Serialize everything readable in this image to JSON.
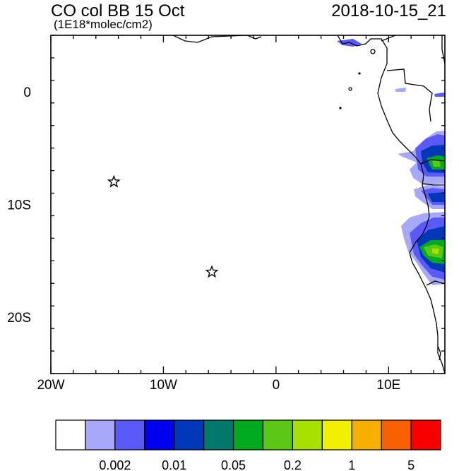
{
  "title": "CO col BB 15 Oct",
  "units": "(1E18*molec/cm2)",
  "timestamp": "2018-10-15_21",
  "lon_ticks": [
    {
      "label": "20W",
      "lon": -20
    },
    {
      "label": "10W",
      "lon": -10
    },
    {
      "label": "0",
      "lon": 0
    },
    {
      "label": "10E",
      "lon": 10
    }
  ],
  "lat_ticks": [
    {
      "label": "0",
      "lat": 0
    },
    {
      "label": "10S",
      "lat": -10
    },
    {
      "label": "20S",
      "lat": -20
    }
  ],
  "extent": {
    "lon_min": -20,
    "lon_max": 15,
    "lat_min": -25,
    "lat_max": 5
  },
  "markers": [
    {
      "name": "star-marker",
      "lon": -14.4,
      "lat": -8.0
    },
    {
      "name": "star-marker",
      "lon": -5.7,
      "lat": -16.0
    }
  ],
  "colorbar": {
    "colors": [
      "#ffffff",
      "#a8a8f8",
      "#5a5af8",
      "#0000f0",
      "#0038b8",
      "#00786a",
      "#00aa1e",
      "#5ac814",
      "#a8e000",
      "#f0f000",
      "#f8b000",
      "#f86000",
      "#f80000"
    ],
    "labels": [
      "0.002",
      "0.01",
      "0.05",
      "0.2",
      "1",
      "5"
    ]
  }
}
